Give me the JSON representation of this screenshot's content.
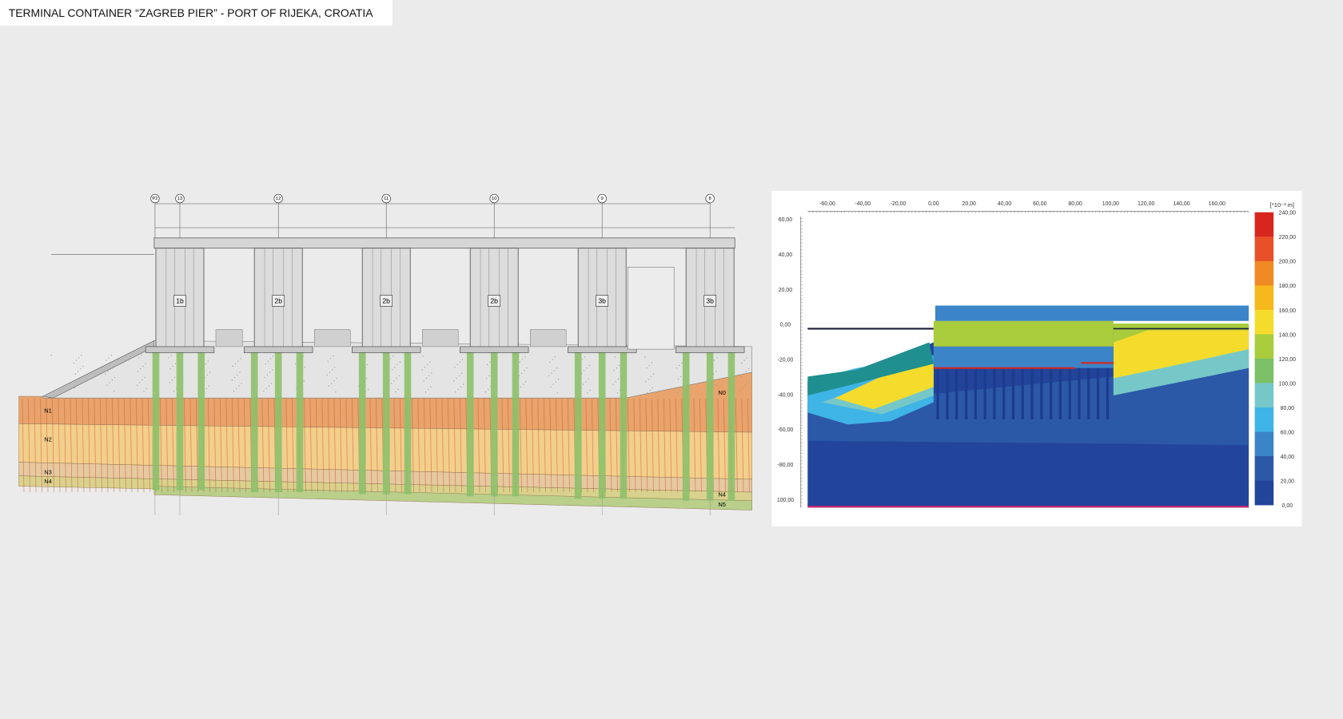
{
  "header": {
    "title": "TERMINAL CONTAINER “ZAGREB PIER” - PORT OF RIJEKA, CROATIA"
  },
  "section_drawing": {
    "axes": [
      "P2",
      "13",
      "12",
      "11",
      "10",
      "9",
      "8"
    ],
    "modules": [
      "1b",
      "2b",
      "2b",
      "2b",
      "3b",
      "3b"
    ],
    "soil_layers": [
      "N1",
      "N2",
      "N3",
      "N4",
      "N0",
      "N4",
      "N5"
    ]
  },
  "displacement_plot": {
    "x_ticks": [
      "-60,00",
      "-40,00",
      "-20,00",
      "0,00",
      "20,00",
      "40,00",
      "60,00",
      "80,00",
      "100,00",
      "120,00",
      "140,00",
      "160,00"
    ],
    "y_ticks": [
      "60,00",
      "40,00",
      "20,00",
      "0,00",
      "-20,00",
      "-40,00",
      "-60,00",
      "-80,00",
      "100,00"
    ],
    "legend_unit": "[*10⁻³ m]",
    "legend_ticks": [
      "240,00",
      "220,00",
      "200,00",
      "180,00",
      "160,00",
      "140,00",
      "120,00",
      "100,00",
      "80,00",
      "60,00",
      "40,00",
      "20,00",
      "0,00"
    ]
  }
}
